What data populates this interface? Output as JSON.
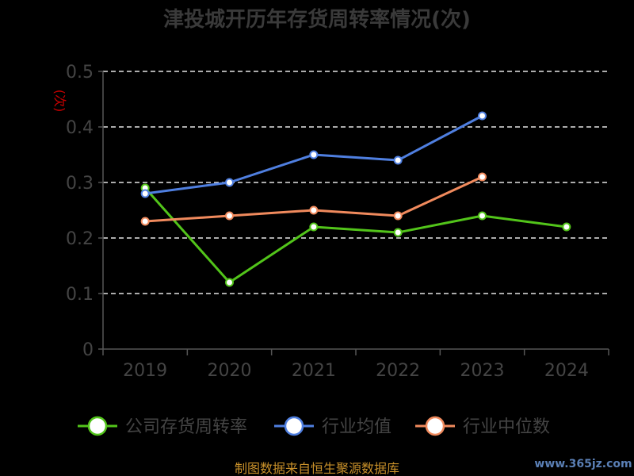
{
  "chart_data": {
    "type": "line",
    "title": "津投城开历年存货周转率情况(次)",
    "ylabel": "(次)",
    "xlabel": "",
    "categories": [
      "2019",
      "2020",
      "2021",
      "2022",
      "2023",
      "2024"
    ],
    "ylim": [
      0,
      0.5
    ],
    "yticks": [
      0,
      0.1,
      0.2,
      0.3,
      0.4,
      0.5
    ],
    "ytick_labels": [
      "0",
      "0.1",
      "0.2",
      "0.3",
      "0.4",
      "0.5"
    ],
    "grid": true,
    "legend_position": "bottom",
    "series": [
      {
        "name": "公司存货周转率",
        "color": "#52c41a",
        "values": [
          0.29,
          0.12,
          0.22,
          0.21,
          0.24,
          0.22
        ]
      },
      {
        "name": "行业均值",
        "color": "#4f7fe0",
        "values": [
          0.28,
          0.3,
          0.35,
          0.34,
          0.42,
          null
        ]
      },
      {
        "name": "行业中位数",
        "color": "#f08a5d",
        "values": [
          0.23,
          0.24,
          0.25,
          0.24,
          0.31,
          null
        ]
      }
    ]
  },
  "footer": {
    "source": "制图数据来自恒生聚源数据库",
    "watermark": "www.365jz.com"
  }
}
